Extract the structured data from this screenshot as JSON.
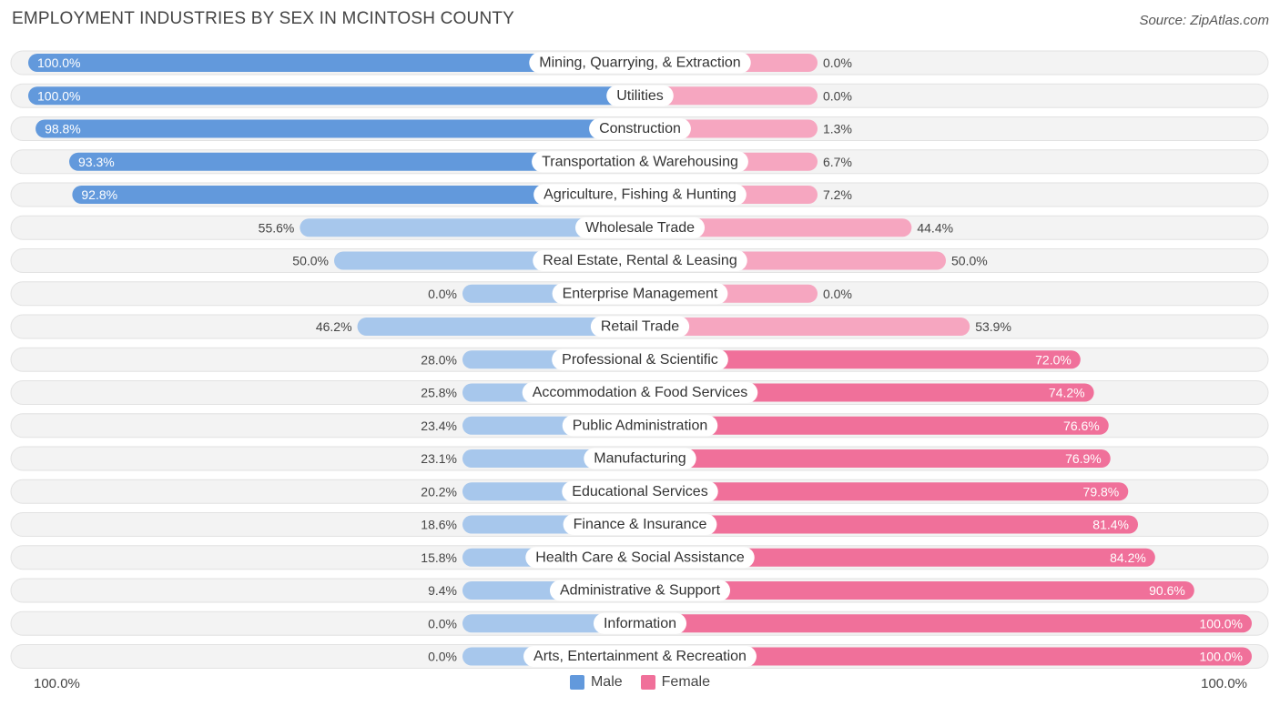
{
  "title": "EMPLOYMENT INDUSTRIES BY SEX IN MCINTOSH COUNTY",
  "source": "Source: ZipAtlas.com",
  "colors": {
    "male_strong": "#6299dc",
    "male_light": "#a7c7ec",
    "female_strong": "#f0709a",
    "female_light": "#f6a6c0",
    "row_bg": "#f2f2f2"
  },
  "axis": {
    "left_label": "100.0%",
    "right_label": "100.0%"
  },
  "legend": {
    "male": "Male",
    "female": "Female"
  },
  "chart_data": {
    "type": "bar",
    "orientation": "horizontal-diverging",
    "title": "EMPLOYMENT INDUSTRIES BY SEX IN MCINTOSH COUNTY",
    "xlim": [
      -100,
      100
    ],
    "categories": [
      "Mining, Quarrying, & Extraction",
      "Utilities",
      "Construction",
      "Transportation & Warehousing",
      "Agriculture, Fishing & Hunting",
      "Wholesale Trade",
      "Real Estate, Rental & Leasing",
      "Enterprise Management",
      "Retail Trade",
      "Professional & Scientific",
      "Accommodation & Food Services",
      "Public Administration",
      "Manufacturing",
      "Educational Services",
      "Finance & Insurance",
      "Health Care & Social Assistance",
      "Administrative & Support",
      "Information",
      "Arts, Entertainment & Recreation"
    ],
    "series": [
      {
        "name": "Male",
        "values": [
          100.0,
          100.0,
          98.8,
          93.3,
          92.8,
          55.6,
          50.0,
          0.0,
          46.2,
          28.0,
          25.8,
          23.4,
          23.1,
          20.2,
          18.6,
          15.8,
          9.4,
          0.0,
          0.0
        ],
        "labels": [
          "100.0%",
          "100.0%",
          "98.8%",
          "93.3%",
          "92.8%",
          "55.6%",
          "50.0%",
          "0.0%",
          "46.2%",
          "28.0%",
          "25.8%",
          "23.4%",
          "23.1%",
          "20.2%",
          "18.6%",
          "15.8%",
          "9.4%",
          "0.0%",
          "0.0%"
        ]
      },
      {
        "name": "Female",
        "values": [
          0.0,
          0.0,
          1.3,
          6.7,
          7.2,
          44.4,
          50.0,
          0.0,
          53.9,
          72.0,
          74.2,
          76.6,
          76.9,
          79.8,
          81.4,
          84.2,
          90.6,
          100.0,
          100.0
        ],
        "labels": [
          "0.0%",
          "0.0%",
          "1.3%",
          "6.7%",
          "7.2%",
          "44.4%",
          "50.0%",
          "0.0%",
          "53.9%",
          "72.0%",
          "74.2%",
          "76.6%",
          "76.9%",
          "79.8%",
          "81.4%",
          "84.2%",
          "90.6%",
          "100.0%",
          "100.0%"
        ]
      }
    ]
  }
}
